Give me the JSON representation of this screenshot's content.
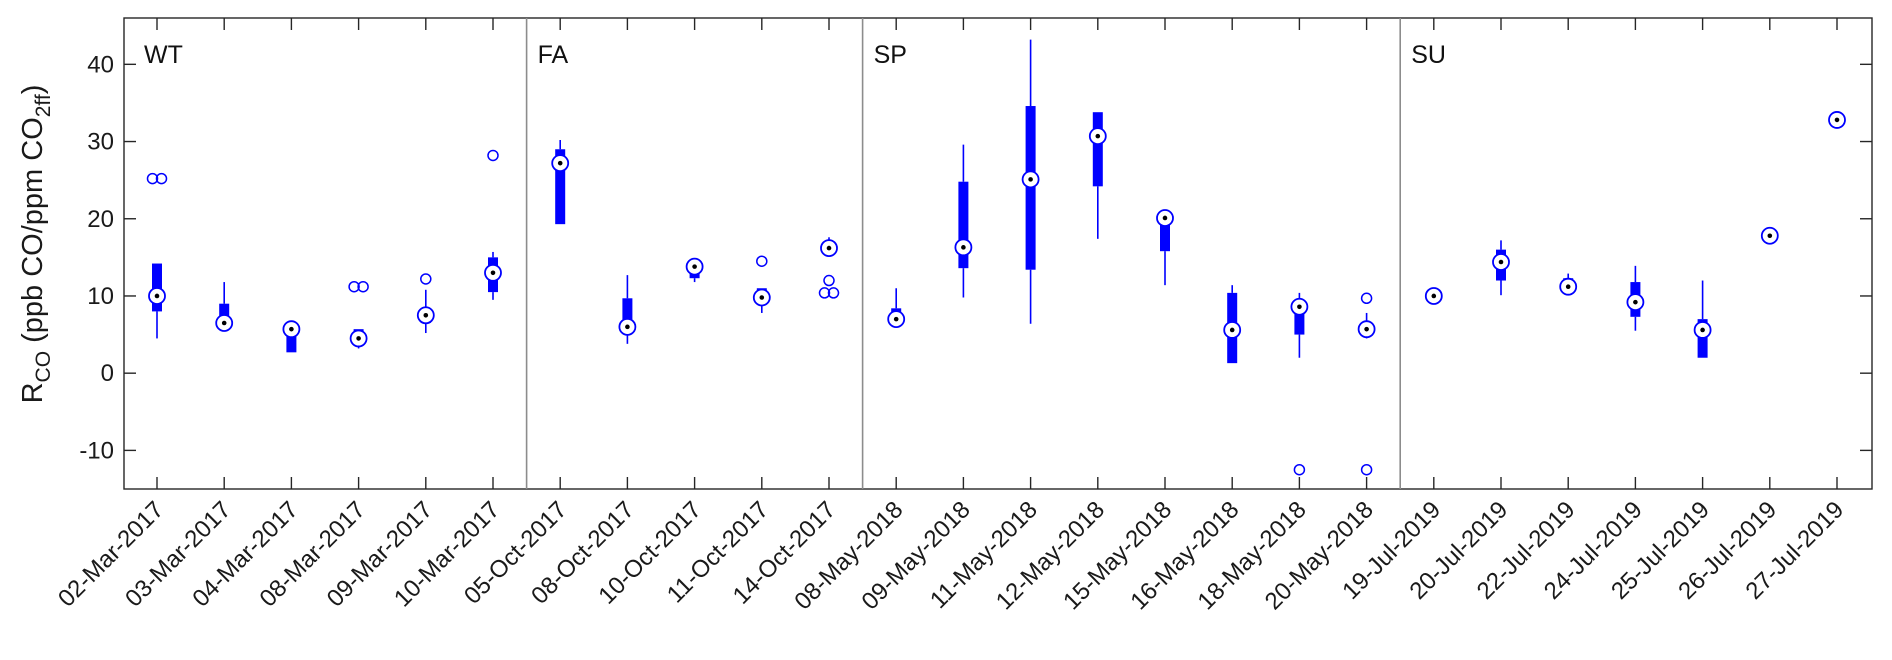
{
  "chart_data": {
    "type": "box",
    "ylabel": {
      "main": "R",
      "main_sub": "CO",
      "rest": " (ppb CO/ppm CO",
      "rest_sub": "2ff",
      "close": ")"
    },
    "ylim": [
      -15,
      46
    ],
    "yticks": [
      40,
      30,
      20,
      10,
      0,
      -10
    ],
    "ytick_labels": [
      "40",
      "30",
      "20",
      "10",
      "0",
      "-10"
    ],
    "grid": false,
    "color": "#0000ff",
    "seasons": [
      {
        "label": "WT",
        "start_index": 0,
        "end_index": 5
      },
      {
        "label": "FA",
        "start_index": 6,
        "end_index": 10
      },
      {
        "label": "SP",
        "start_index": 11,
        "end_index": 18
      },
      {
        "label": "SU",
        "start_index": 19,
        "end_index": 25
      }
    ],
    "categories": [
      "02-Mar-2017",
      "03-Mar-2017",
      "04-Mar-2017",
      "08-Mar-2017",
      "09-Mar-2017",
      "10-Mar-2017",
      "05-Oct-2017",
      "08-Oct-2017",
      "10-Oct-2017",
      "11-Oct-2017",
      "14-Oct-2017",
      "08-May-2018",
      "09-May-2018",
      "11-May-2018",
      "12-May-2018",
      "15-May-2018",
      "16-May-2018",
      "18-May-2018",
      "20-May-2018",
      "19-Jul-2019",
      "20-Jul-2019",
      "22-Jul-2019",
      "24-Jul-2019",
      "25-Jul-2019",
      "26-Jul-2019",
      "27-Jul-2019"
    ],
    "boxes": [
      {
        "q1": 8.0,
        "q3": 14.2,
        "median": 10.0,
        "wlo": 4.5,
        "whi": 14.2,
        "outliers": [
          25.2,
          25.2
        ]
      },
      {
        "q1": 6.5,
        "q3": 9.0,
        "median": 6.5,
        "wlo": 6.5,
        "whi": 11.8,
        "outliers": []
      },
      {
        "q1": 2.7,
        "q3": 5.7,
        "median": 5.7,
        "wlo": 2.7,
        "whi": 5.7,
        "outliers": []
      },
      {
        "q1": 4.5,
        "q3": 5.7,
        "median": 4.5,
        "wlo": 3.2,
        "whi": 5.7,
        "outliers": [
          11.2,
          11.2
        ]
      },
      {
        "q1": 6.5,
        "q3": 8.2,
        "median": 7.5,
        "wlo": 5.2,
        "whi": 10.8,
        "outliers": [
          12.2
        ]
      },
      {
        "q1": 10.5,
        "q3": 15.0,
        "median": 13.0,
        "wlo": 9.5,
        "whi": 15.7,
        "outliers": [
          28.2
        ]
      },
      {
        "q1": 19.3,
        "q3": 29.0,
        "median": 27.2,
        "wlo": 19.3,
        "whi": 30.2,
        "outliers": []
      },
      {
        "q1": 5.2,
        "q3": 9.7,
        "median": 6.0,
        "wlo": 3.8,
        "whi": 12.7,
        "outliers": []
      },
      {
        "q1": 12.3,
        "q3": 14.0,
        "median": 13.8,
        "wlo": 11.8,
        "whi": 14.3,
        "outliers": []
      },
      {
        "q1": 9.2,
        "q3": 11.0,
        "median": 9.8,
        "wlo": 7.8,
        "whi": 11.0,
        "outliers": [
          14.5
        ]
      },
      {
        "q1": 15.8,
        "q3": 16.8,
        "median": 16.2,
        "wlo": 15.8,
        "whi": 17.6,
        "outliers": [
          12.0,
          10.4,
          10.4
        ]
      },
      {
        "q1": 6.9,
        "q3": 8.4,
        "median": 7.0,
        "wlo": 6.9,
        "whi": 11.0,
        "outliers": []
      },
      {
        "q1": 13.6,
        "q3": 24.8,
        "median": 16.3,
        "wlo": 9.8,
        "whi": 29.6,
        "outliers": []
      },
      {
        "q1": 13.4,
        "q3": 34.6,
        "median": 25.1,
        "wlo": 6.4,
        "whi": 43.2,
        "outliers": []
      },
      {
        "q1": 24.2,
        "q3": 33.8,
        "median": 30.7,
        "wlo": 17.4,
        "whi": 33.8,
        "outliers": []
      },
      {
        "q1": 15.8,
        "q3": 20.2,
        "median": 20.1,
        "wlo": 11.4,
        "whi": 20.2,
        "outliers": []
      },
      {
        "q1": 1.3,
        "q3": 10.4,
        "median": 5.6,
        "wlo": 1.3,
        "whi": 11.4,
        "outliers": []
      },
      {
        "q1": 5.0,
        "q3": 9.5,
        "median": 8.6,
        "wlo": 2.0,
        "whi": 10.4,
        "outliers": [
          -12.5
        ]
      },
      {
        "q1": 5.2,
        "q3": 6.5,
        "median": 5.7,
        "wlo": 4.5,
        "whi": 7.8,
        "outliers": [
          9.7,
          -12.5
        ]
      },
      {
        "q1": 9.5,
        "q3": 10.2,
        "median": 10.0,
        "wlo": 9.5,
        "whi": 10.2,
        "outliers": []
      },
      {
        "q1": 12.0,
        "q3": 16.0,
        "median": 14.4,
        "wlo": 10.1,
        "whi": 17.2,
        "outliers": []
      },
      {
        "q1": 11.0,
        "q3": 12.3,
        "median": 11.2,
        "wlo": 11.0,
        "whi": 12.9,
        "outliers": []
      },
      {
        "q1": 7.3,
        "q3": 11.8,
        "median": 9.2,
        "wlo": 5.5,
        "whi": 13.9,
        "outliers": []
      },
      {
        "q1": 2.0,
        "q3": 7.0,
        "median": 5.6,
        "wlo": 2.0,
        "whi": 12.0,
        "outliers": []
      },
      {
        "q1": 17.5,
        "q3": 18.0,
        "median": 17.8,
        "wlo": 17.5,
        "whi": 18.0,
        "outliers": []
      },
      {
        "q1": 32.6,
        "q3": 33.1,
        "median": 32.8,
        "wlo": 32.6,
        "whi": 33.1,
        "outliers": []
      }
    ]
  }
}
